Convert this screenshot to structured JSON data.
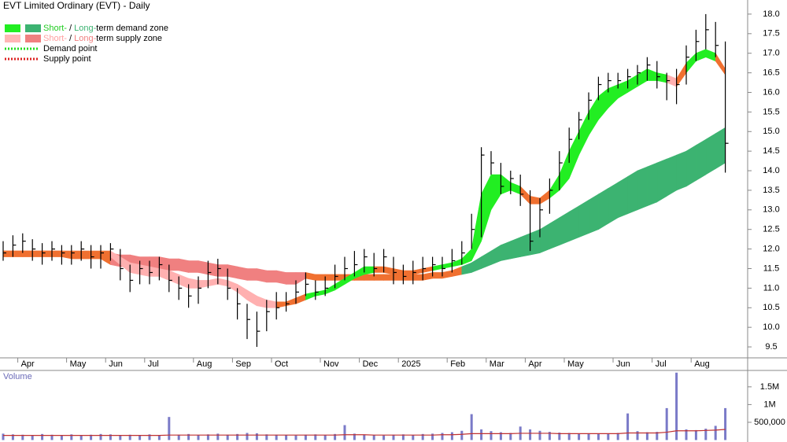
{
  "chart_data": {
    "type": "ohlc",
    "title": "EVT Limited Ordinary (EVT) - Daily",
    "categories": [
      null,
      null,
      "Apr",
      null,
      null,
      null,
      null,
      "May",
      null,
      null,
      null,
      "Jun",
      null,
      null,
      null,
      "Jul",
      null,
      null,
      null,
      null,
      "Aug",
      null,
      null,
      null,
      "Sep",
      null,
      null,
      null,
      "Oct",
      null,
      null,
      null,
      null,
      "Nov",
      null,
      null,
      null,
      "Dec",
      null,
      null,
      null,
      "2025",
      null,
      null,
      null,
      null,
      "Feb",
      null,
      null,
      null,
      "Mar",
      null,
      null,
      null,
      "Apr",
      null,
      null,
      null,
      "May",
      null,
      null,
      null,
      null,
      "Jun",
      null,
      null,
      null,
      "Jul",
      null,
      null,
      null,
      "Aug",
      null,
      null,
      null
    ],
    "high": [
      12.2,
      12.35,
      12.4,
      12.25,
      12.15,
      12.2,
      12.1,
      12.1,
      12.2,
      12.1,
      12.1,
      12.15,
      12.0,
      11.6,
      11.7,
      11.7,
      11.8,
      11.6,
      11.3,
      11.1,
      11.3,
      11.7,
      11.75,
      11.5,
      11.0,
      10.6,
      10.4,
      10.7,
      10.9,
      10.9,
      11.2,
      11.4,
      11.2,
      11.3,
      11.6,
      11.8,
      11.95,
      12.0,
      11.9,
      12.0,
      11.8,
      11.6,
      11.7,
      11.8,
      11.8,
      11.8,
      12.0,
      12.2,
      12.9,
      14.6,
      14.5,
      14.2,
      14.0,
      13.9,
      13.5,
      13.3,
      13.8,
      14.5,
      15.1,
      15.5,
      16.0,
      16.4,
      16.5,
      16.5,
      16.6,
      16.7,
      16.9,
      16.8,
      16.5,
      16.6,
      17.2,
      17.6,
      18.0,
      17.8,
      17.3
    ],
    "low": [
      11.7,
      11.8,
      11.9,
      11.7,
      11.6,
      11.7,
      11.6,
      11.6,
      11.7,
      11.5,
      11.5,
      11.7,
      11.2,
      10.9,
      11.1,
      11.1,
      11.2,
      10.9,
      10.7,
      10.5,
      10.6,
      11.0,
      11.1,
      10.7,
      10.2,
      9.7,
      9.5,
      9.9,
      10.2,
      10.4,
      10.6,
      10.8,
      10.7,
      10.8,
      11.0,
      11.2,
      11.3,
      11.4,
      11.3,
      11.4,
      11.1,
      11.1,
      11.1,
      11.2,
      11.3,
      11.3,
      11.4,
      11.6,
      12.0,
      12.3,
      13.9,
      13.4,
      13.4,
      13.1,
      11.95,
      12.3,
      12.9,
      13.5,
      14.2,
      14.8,
      15.3,
      15.8,
      16.0,
      16.1,
      16.1,
      16.2,
      16.3,
      16.1,
      15.8,
      15.7,
      16.2,
      16.8,
      17.1,
      16.9,
      13.95
    ],
    "close": [
      11.9,
      12.1,
      12.2,
      12.0,
      11.9,
      12.0,
      11.9,
      11.9,
      12.0,
      11.8,
      11.9,
      12.0,
      11.5,
      11.2,
      11.5,
      11.4,
      11.6,
      11.2,
      11.0,
      10.8,
      11.0,
      11.4,
      11.5,
      11.0,
      10.6,
      10.2,
      9.9,
      10.4,
      10.5,
      10.6,
      10.9,
      11.1,
      10.9,
      11.0,
      11.3,
      11.5,
      11.6,
      11.8,
      11.5,
      11.8,
      11.4,
      11.3,
      11.4,
      11.5,
      11.6,
      11.5,
      11.7,
      11.9,
      12.5,
      14.4,
      14.2,
      13.6,
      13.8,
      13.4,
      12.2,
      13.0,
      13.5,
      14.2,
      14.8,
      15.3,
      15.8,
      16.2,
      16.3,
      16.3,
      16.4,
      16.5,
      16.7,
      16.4,
      16.3,
      16.2,
      16.9,
      17.3,
      17.6,
      17.2,
      14.7
    ],
    "bar_color": "#000000",
    "ylim": [
      9.22,
      18.36
    ],
    "yticks": [
      9.5,
      {
        "value": 10,
        "label": "10.0"
      },
      10.5,
      {
        "value": 11,
        "label": "11.0"
      },
      11.5,
      {
        "value": 12,
        "label": "12.0"
      },
      12.5,
      {
        "value": 13,
        "label": "13.0"
      },
      13.5,
      {
        "value": 14,
        "label": "14.0"
      },
      14.5,
      {
        "value": 15,
        "label": "15.0"
      },
      15.5,
      {
        "value": 16,
        "label": "16.0"
      },
      16.5,
      {
        "value": 17,
        "label": "17.0"
      },
      17.5,
      {
        "value": 18,
        "label": "18.0"
      }
    ],
    "short_term_zone": {
      "upper": [
        11.95,
        11.95,
        11.95,
        11.95,
        11.95,
        11.95,
        11.95,
        11.95,
        11.95,
        11.95,
        11.95,
        11.95,
        11.8,
        11.65,
        11.6,
        11.55,
        11.5,
        11.45,
        11.35,
        11.25,
        11.2,
        11.2,
        11.25,
        11.2,
        11.1,
        10.95,
        10.8,
        10.7,
        10.65,
        10.65,
        10.75,
        10.85,
        10.9,
        10.95,
        11.1,
        11.25,
        11.4,
        11.55,
        11.55,
        11.55,
        11.5,
        11.45,
        11.45,
        11.5,
        11.55,
        11.6,
        11.65,
        11.75,
        12.0,
        13.4,
        13.9,
        13.9,
        13.7,
        13.6,
        13.35,
        13.3,
        13.5,
        13.9,
        14.5,
        15.0,
        15.5,
        15.9,
        16.1,
        16.2,
        16.3,
        16.45,
        16.6,
        16.5,
        16.45,
        16.35,
        16.75,
        17.0,
        17.1,
        17.0,
        16.6
      ],
      "lower": [
        11.85,
        11.85,
        11.85,
        11.85,
        11.85,
        11.85,
        11.85,
        11.85,
        11.85,
        11.85,
        11.85,
        11.8,
        11.6,
        11.4,
        11.35,
        11.3,
        11.3,
        11.2,
        11.1,
        11.0,
        11.0,
        11.05,
        11.1,
        11.05,
        10.9,
        10.7,
        10.55,
        10.5,
        10.5,
        10.55,
        10.6,
        10.7,
        10.8,
        10.85,
        10.95,
        11.1,
        11.25,
        11.35,
        11.4,
        11.4,
        11.35,
        11.35,
        11.35,
        11.4,
        11.45,
        11.5,
        11.55,
        11.6,
        11.7,
        12.2,
        13.0,
        13.4,
        13.5,
        13.4,
        13.15,
        13.15,
        13.3,
        13.5,
        13.8,
        14.4,
        14.9,
        15.3,
        15.6,
        15.85,
        16.0,
        16.15,
        16.3,
        16.3,
        16.25,
        16.15,
        16.5,
        16.8,
        16.9,
        16.8,
        16.45
      ],
      "colors": [
        "#f07030",
        "#f07030",
        "#f07030",
        "#f07030",
        "#f07030",
        "#f07030",
        "#f07030",
        "#f07030",
        "#f07030",
        "#f07030",
        "#f07030",
        "#ffb0b0",
        "#ffb0b0",
        "#ffb0b0",
        "#ffb0b0",
        "#ffb0b0",
        "#ffb0b0",
        "#ffb0b0",
        "#ffb0b0",
        "#ffb0b0",
        "#ffb0b0",
        "#ffb0b0",
        "#ffb0b0",
        "#ffb0b0",
        "#ffb0b0",
        "#ffb0b0",
        "#ffb0b0",
        "#ffb0b0",
        "#f07030",
        "#f07030",
        "#f07030",
        "#22ee22",
        "#22ee22",
        "#22ee22",
        "#22ee22",
        "#22ee22",
        "#22ee22",
        "#22ee22",
        "#f07030",
        "#f07030",
        "#f07030",
        "#f07030",
        "#f07030",
        "#f07030",
        "#22ee22",
        "#22ee22",
        "#22ee22",
        "#22ee22",
        "#22ee22",
        "#22ee22",
        "#22ee22",
        "#22ee22",
        "#22ee22",
        "#f07030",
        "#f07030",
        "#f07030",
        "#22ee22",
        "#22ee22",
        "#22ee22",
        "#22ee22",
        "#22ee22",
        "#22ee22",
        "#22ee22",
        "#22ee22",
        "#22ee22",
        "#22ee22",
        "#22ee22",
        "#22ee22",
        "#ffb0b0",
        "#f07030",
        "#22ee22",
        "#22ee22",
        "#22ee22",
        "#f07030",
        "#ff8080"
      ]
    },
    "long_term_zone": {
      "upper": [
        11.95,
        11.95,
        11.95,
        11.95,
        11.95,
        11.95,
        11.95,
        11.9,
        11.9,
        11.9,
        11.9,
        11.9,
        11.85,
        11.85,
        11.8,
        11.8,
        11.8,
        11.75,
        11.75,
        11.7,
        11.7,
        11.65,
        11.6,
        11.6,
        11.55,
        11.5,
        11.5,
        11.45,
        11.45,
        11.4,
        11.4,
        11.4,
        11.35,
        11.35,
        11.35,
        11.35,
        11.35,
        11.35,
        11.35,
        11.35,
        11.35,
        11.35,
        11.35,
        11.35,
        11.4,
        11.4,
        11.45,
        11.55,
        11.65,
        11.8,
        11.95,
        12.1,
        12.2,
        12.3,
        12.4,
        12.5,
        12.65,
        12.8,
        12.95,
        13.1,
        13.25,
        13.4,
        13.55,
        13.7,
        13.85,
        14.0,
        14.1,
        14.2,
        14.3,
        14.4,
        14.5,
        14.65,
        14.8,
        14.95,
        15.1
      ],
      "lower": [
        11.8,
        11.8,
        11.8,
        11.8,
        11.8,
        11.8,
        11.8,
        11.75,
        11.75,
        11.75,
        11.75,
        11.6,
        11.55,
        11.55,
        11.5,
        11.5,
        11.5,
        11.45,
        11.45,
        11.4,
        11.4,
        11.35,
        11.3,
        11.3,
        11.25,
        11.2,
        11.2,
        11.15,
        11.15,
        11.1,
        11.1,
        11.25,
        11.2,
        11.2,
        11.2,
        11.2,
        11.2,
        11.2,
        11.2,
        11.2,
        11.2,
        11.2,
        11.2,
        11.2,
        11.25,
        11.25,
        11.3,
        11.35,
        11.4,
        11.5,
        11.6,
        11.7,
        11.75,
        11.8,
        11.85,
        11.9,
        12.0,
        12.1,
        12.2,
        12.3,
        12.4,
        12.5,
        12.65,
        12.8,
        12.9,
        13.0,
        13.1,
        13.2,
        13.35,
        13.5,
        13.6,
        13.75,
        13.9,
        14.05,
        14.2
      ],
      "colors": [
        "#f07030",
        "#f07030",
        "#f07030",
        "#f07030",
        "#f07030",
        "#f07030",
        "#f07030",
        "#f07030",
        "#f07030",
        "#f07030",
        "#f07030",
        "#f08080",
        "#f08080",
        "#f08080",
        "#f08080",
        "#f08080",
        "#f08080",
        "#f08080",
        "#f08080",
        "#f08080",
        "#f08080",
        "#f08080",
        "#f08080",
        "#f08080",
        "#f08080",
        "#f08080",
        "#f08080",
        "#f08080",
        "#f08080",
        "#f08080",
        "#f08080",
        "#f07030",
        "#f07030",
        "#f07030",
        "#f07030",
        "#f07030",
        "#f07030",
        "#f07030",
        "#f07030",
        "#f07030",
        "#f07030",
        "#f07030",
        "#f07030",
        "#f07030",
        "#f07030",
        "#f07030",
        "#f07030",
        "#3cb371",
        "#3cb371",
        "#3cb371",
        "#3cb371",
        "#3cb371",
        "#3cb371",
        "#3cb371",
        "#3cb371",
        "#3cb371",
        "#3cb371",
        "#3cb371",
        "#3cb371",
        "#3cb371",
        "#3cb371",
        "#3cb371",
        "#3cb371",
        "#3cb371",
        "#3cb371",
        "#3cb371",
        "#3cb371",
        "#3cb371",
        "#3cb371",
        "#3cb371",
        "#3cb371",
        "#3cb371",
        "#3cb371",
        "#3cb371",
        "#3cb371"
      ]
    },
    "legend": [
      {
        "swatches": [
          "#22ee22",
          "#3cb371"
        ],
        "dotted": false,
        "parts": [
          "Short-",
          " / ",
          "Long-",
          "term demand zone"
        ],
        "part_colors": [
          "#22cc22",
          "#000000",
          "#3cb371",
          "#000000"
        ]
      },
      {
        "swatches": [
          "#ffb6b6",
          "#f08080"
        ],
        "dotted": false,
        "parts": [
          "Short-",
          " / ",
          "Long-",
          "term supply zone"
        ],
        "part_colors": [
          "#ffa0a0",
          "#000000",
          "#f08080",
          "#000000"
        ]
      },
      {
        "swatches": [
          "#22dd22"
        ],
        "dotted": true,
        "parts": [
          "Demand point"
        ],
        "part_colors": [
          "#000000"
        ]
      },
      {
        "swatches": [
          "#dd2222"
        ],
        "dotted": true,
        "parts": [
          "Supply point"
        ],
        "part_colors": [
          "#000000"
        ]
      }
    ],
    "volume": {
      "label": "Volume",
      "values": [
        180000,
        160000,
        150000,
        140000,
        170000,
        150000,
        130000,
        160000,
        140000,
        150000,
        170000,
        160000,
        140000,
        150000,
        130000,
        160000,
        140000,
        650000,
        150000,
        170000,
        140000,
        160000,
        180000,
        150000,
        170000,
        200000,
        190000,
        160000,
        150000,
        140000,
        130000,
        150000,
        160000,
        140000,
        170000,
        420000,
        180000,
        150000,
        140000,
        130000,
        150000,
        160000,
        140000,
        170000,
        180000,
        200000,
        220000,
        260000,
        730000,
        300000,
        250000,
        220000,
        200000,
        380000,
        300000,
        260000,
        230000,
        210000,
        200000,
        180000,
        190000,
        170000,
        180000,
        200000,
        750000,
        250000,
        220000,
        230000,
        900000,
        1900000,
        300000,
        280000,
        320000,
        400000,
        900000
      ],
      "average": [
        130000,
        130000,
        130000,
        130000,
        130000,
        130000,
        130000,
        130000,
        130000,
        130000,
        130000,
        130000,
        130000,
        130000,
        130000,
        130000,
        130000,
        140000,
        140000,
        140000,
        140000,
        140000,
        140000,
        140000,
        140000,
        140000,
        140000,
        140000,
        140000,
        140000,
        140000,
        140000,
        140000,
        140000,
        140000,
        150000,
        150000,
        150000,
        140000,
        140000,
        140000,
        140000,
        140000,
        140000,
        140000,
        150000,
        150000,
        160000,
        180000,
        180000,
        180000,
        180000,
        180000,
        190000,
        190000,
        190000,
        190000,
        180000,
        180000,
        180000,
        180000,
        180000,
        180000,
        180000,
        200000,
        200000,
        200000,
        200000,
        220000,
        260000,
        260000,
        260000,
        270000,
        280000,
        300000
      ],
      "color": "#7a7ac8",
      "average_color": "#c03030",
      "ylim": [
        0,
        1940000
      ],
      "yticks": [
        {
          "value": 500000,
          "label": "500,000"
        },
        {
          "value": 1000000,
          "label": "1M"
        },
        {
          "value": 1500000,
          "label": "1.5M"
        }
      ]
    }
  }
}
